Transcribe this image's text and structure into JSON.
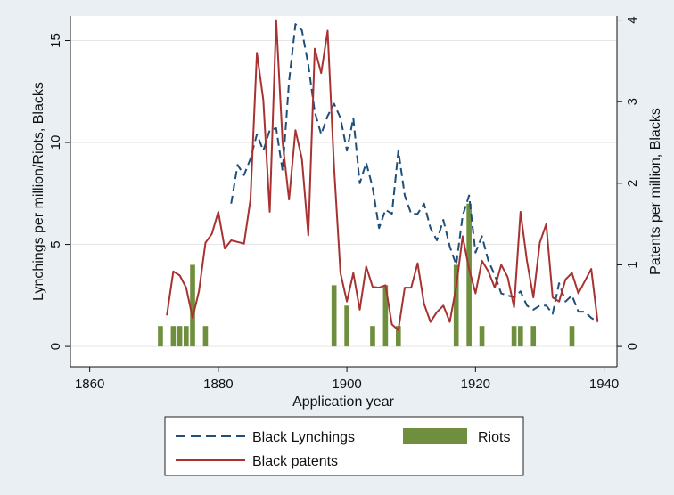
{
  "chart_data": {
    "type": "bar+line",
    "xlabel": "Application year",
    "ylabel_left": "Lynchings per million/Riots, Blacks",
    "ylabel_right": "Patents per million, Blacks",
    "xlim": [
      1857,
      1942
    ],
    "ylim_left": [
      -1,
      16.2
    ],
    "ylim_right": [
      -0.25,
      4.05
    ],
    "x_ticks": [
      1860,
      1880,
      1900,
      1920,
      1940
    ],
    "y_left_ticks": [
      0,
      5,
      10,
      15
    ],
    "y_right_ticks": [
      0,
      1,
      2,
      3,
      4
    ],
    "grid": true,
    "legend_position": "bottom",
    "colors": {
      "lynchings": "#1f4e79",
      "patents": "#a83232",
      "riots": "#6f8f3e"
    },
    "series": [
      {
        "name": "Black Lynchings",
        "style": "dashed",
        "axis": "left",
        "x": [
          1882,
          1883,
          1884,
          1885,
          1886,
          1887,
          1888,
          1889,
          1890,
          1891,
          1892,
          1893,
          1894,
          1895,
          1896,
          1897,
          1898,
          1899,
          1900,
          1901,
          1902,
          1903,
          1904,
          1905,
          1906,
          1907,
          1908,
          1909,
          1910,
          1911,
          1912,
          1913,
          1914,
          1915,
          1916,
          1917,
          1918,
          1919,
          1920,
          1921,
          1922,
          1923,
          1924,
          1925,
          1926,
          1927,
          1928,
          1929,
          1930,
          1931,
          1932,
          1933,
          1934,
          1935,
          1936,
          1937,
          1938,
          1939
        ],
        "values": [
          7.0,
          8.9,
          8.4,
          9.2,
          10.4,
          9.6,
          10.6,
          10.7,
          8.6,
          13.0,
          15.8,
          15.5,
          13.8,
          11.5,
          10.4,
          11.3,
          11.9,
          11.2,
          9.6,
          11.2,
          8.0,
          9.0,
          7.8,
          5.8,
          6.7,
          6.5,
          9.6,
          7.4,
          6.5,
          6.5,
          7.0,
          5.8,
          5.2,
          6.2,
          4.9,
          4.0,
          6.4,
          7.4,
          4.6,
          5.4,
          4.2,
          3.5,
          2.6,
          2.5,
          2.4,
          2.7,
          2.0,
          1.8,
          2.0,
          2.0,
          1.6,
          3.1,
          2.2,
          2.5,
          1.7,
          1.7,
          1.4,
          1.2
        ]
      },
      {
        "name": "Black patents",
        "style": "solid",
        "axis": "right",
        "x": [
          1872,
          1873,
          1874,
          1875,
          1876,
          1877,
          1878,
          1879,
          1880,
          1881,
          1882,
          1883,
          1884,
          1885,
          1886,
          1887,
          1888,
          1889,
          1890,
          1891,
          1892,
          1893,
          1894,
          1895,
          1896,
          1897,
          1898,
          1899,
          1900,
          1901,
          1902,
          1903,
          1904,
          1905,
          1906,
          1907,
          1908,
          1909,
          1910,
          1911,
          1912,
          1913,
          1914,
          1915,
          1916,
          1917,
          1918,
          1919,
          1920,
          1921,
          1922,
          1923,
          1924,
          1925,
          1926,
          1927,
          1928,
          1929,
          1930,
          1931,
          1932,
          1933,
          1934,
          1935,
          1936,
          1937,
          1938,
          1939
        ],
        "values": [
          0.38,
          0.92,
          0.87,
          0.72,
          0.35,
          0.68,
          1.27,
          1.38,
          1.65,
          1.2,
          1.3,
          1.28,
          1.26,
          1.8,
          3.6,
          3.02,
          1.65,
          4.0,
          2.5,
          1.8,
          2.65,
          2.3,
          1.36,
          3.65,
          3.35,
          3.87,
          2.2,
          0.9,
          0.55,
          0.9,
          0.45,
          0.98,
          0.73,
          0.72,
          0.75,
          0.27,
          0.2,
          0.72,
          0.72,
          1.02,
          0.52,
          0.3,
          0.42,
          0.5,
          0.3,
          0.73,
          1.35,
          0.95,
          0.65,
          1.05,
          0.92,
          0.72,
          1.0,
          0.85,
          0.48,
          1.65,
          1.05,
          0.6,
          1.27,
          1.5,
          0.6,
          0.55,
          0.82,
          0.9,
          0.65,
          0.8,
          0.95,
          0.3
        ]
      },
      {
        "name": "Riots",
        "style": "bar",
        "axis": "left",
        "x": [
          1871,
          1873,
          1874,
          1875,
          1876,
          1878,
          1898,
          1900,
          1904,
          1906,
          1908,
          1917,
          1919,
          1921,
          1926,
          1927,
          1929,
          1935
        ],
        "values": [
          1,
          1,
          1,
          1,
          4,
          1,
          3,
          2,
          1,
          3,
          1,
          4,
          7,
          1,
          1,
          1,
          1,
          1
        ]
      }
    ]
  }
}
